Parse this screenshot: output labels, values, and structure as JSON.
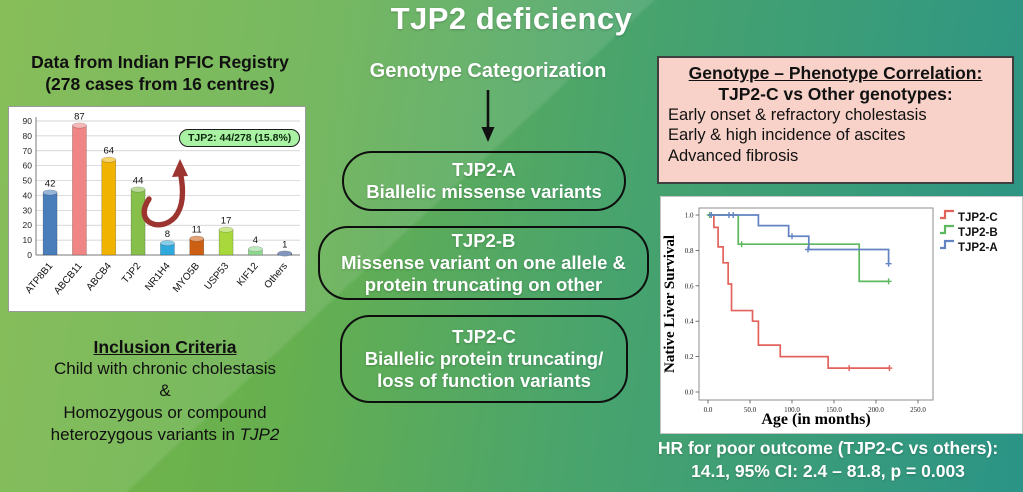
{
  "title": "TJP2 deficiency",
  "colors": {
    "bg_left": "#7ab747",
    "bg_right": "#2b9486",
    "callout_bg": "#a9f2a4",
    "arrow_red": "#9c3430",
    "pink_box_bg": "#f8d2c9",
    "box_border": "#0e0e0e"
  },
  "left": {
    "header_line1": "Data from Indian PFIC Registry",
    "header_line2": "(278 cases from 16 centres)",
    "callout": "TJP2: 44/278 (15.8%)",
    "inclusion": {
      "heading": "Inclusion Criteria",
      "line1": "Child with chronic cholestasis",
      "line2": "&",
      "line3": "Homozygous or compound",
      "line4_prefix": "heterozygous variants in ",
      "line4_gene": "TJP2"
    }
  },
  "middle": {
    "header": "Genotype Categorization",
    "boxes": [
      {
        "title": "TJP2-A",
        "desc": "Biallelic missense variants"
      },
      {
        "title": "TJP2-B",
        "desc": "Missense variant on one allele & protein truncating on other"
      },
      {
        "title": "TJP2-C",
        "desc": "Biallelic protein truncating/ loss of function variants"
      }
    ]
  },
  "right": {
    "correlation": {
      "heading": "Genotype – Phenotype Correlation:",
      "subheading": "TJP2-C vs Other genotypes:",
      "items": [
        "Early onset & refractory cholestasis",
        "Early & high incidence of ascites",
        "Advanced fibrosis"
      ]
    },
    "hr_line1": "HR for poor outcome (TJP2-C vs others):",
    "hr_line2": "14.1, 95% CI: 2.4 – 81.8, p = 0.003"
  },
  "chart_data": [
    {
      "type": "bar",
      "title": "Data from Indian PFIC Registry (278 cases from 16 centres)",
      "categories": [
        "ATP8B1",
        "ABCB11",
        "ABCB4",
        "TJP2",
        "NR1H4",
        "MYO5B",
        "USP53",
        "KIF12",
        "Others"
      ],
      "values": [
        42,
        87,
        64,
        44,
        8,
        11,
        17,
        4,
        1
      ],
      "bar_colors": [
        "#4a7ebb",
        "#ef8585",
        "#f0b300",
        "#86bf4a",
        "#2fa8dc",
        "#cd5f12",
        "#a8d83c",
        "#8fd98f",
        "#2a4b8d"
      ],
      "xlabel": "",
      "ylabel": "",
      "ylim": [
        0,
        90
      ],
      "ytick_step": 10,
      "grid": true,
      "annotation": "TJP2: 44/278 (15.8%)"
    },
    {
      "type": "line",
      "subtype": "kaplan-meier",
      "title": "",
      "xlabel": "Age (in months)",
      "ylabel": "Native Liver Survival",
      "xlim": [
        0,
        250
      ],
      "xticks": [
        0,
        50,
        100,
        150,
        200,
        250
      ],
      "ylim": [
        0,
        1.0
      ],
      "yticks": [
        0.0,
        0.2,
        0.4,
        0.6,
        0.8,
        1.0
      ],
      "grid": false,
      "legend_position": "top-right-outside",
      "series": [
        {
          "name": "TJP2-C",
          "color": "#e4625c",
          "steps": [
            [
              0,
              1.0
            ],
            [
              7,
              0.93
            ],
            [
              12,
              0.82
            ],
            [
              18,
              0.73
            ],
            [
              24,
              0.61
            ],
            [
              28,
              0.46
            ],
            [
              53,
              0.4
            ],
            [
              60,
              0.265
            ],
            [
              86,
              0.2
            ],
            [
              143,
              0.135
            ],
            [
              216,
              0.135
            ]
          ],
          "censors": [
            [
              168,
              0.135
            ],
            [
              216,
              0.135
            ]
          ]
        },
        {
          "name": "TJP2-B",
          "color": "#5cb85c",
          "steps": [
            [
              0,
              1.0
            ],
            [
              36,
              0.835
            ],
            [
              180,
              0.625
            ],
            [
              215,
              0.625
            ]
          ],
          "censors": [
            [
              2,
              1.0
            ],
            [
              40,
              0.835
            ],
            [
              215,
              0.625
            ]
          ]
        },
        {
          "name": "TJP2-A",
          "color": "#6383c3",
          "steps": [
            [
              0,
              1.0
            ],
            [
              60,
              0.94
            ],
            [
              96,
              0.88
            ],
            [
              120,
              0.805
            ],
            [
              215,
              0.725
            ]
          ],
          "censors": [
            [
              4,
              1.0
            ],
            [
              25,
              1.0
            ],
            [
              30,
              1.0
            ],
            [
              100,
              0.88
            ],
            [
              119,
              0.805
            ],
            [
              215,
              0.725
            ]
          ]
        }
      ],
      "annotation": "HR for poor outcome (TJP2-C vs others): 14.1, 95% CI: 2.4 – 81.8, p = 0.003"
    }
  ]
}
